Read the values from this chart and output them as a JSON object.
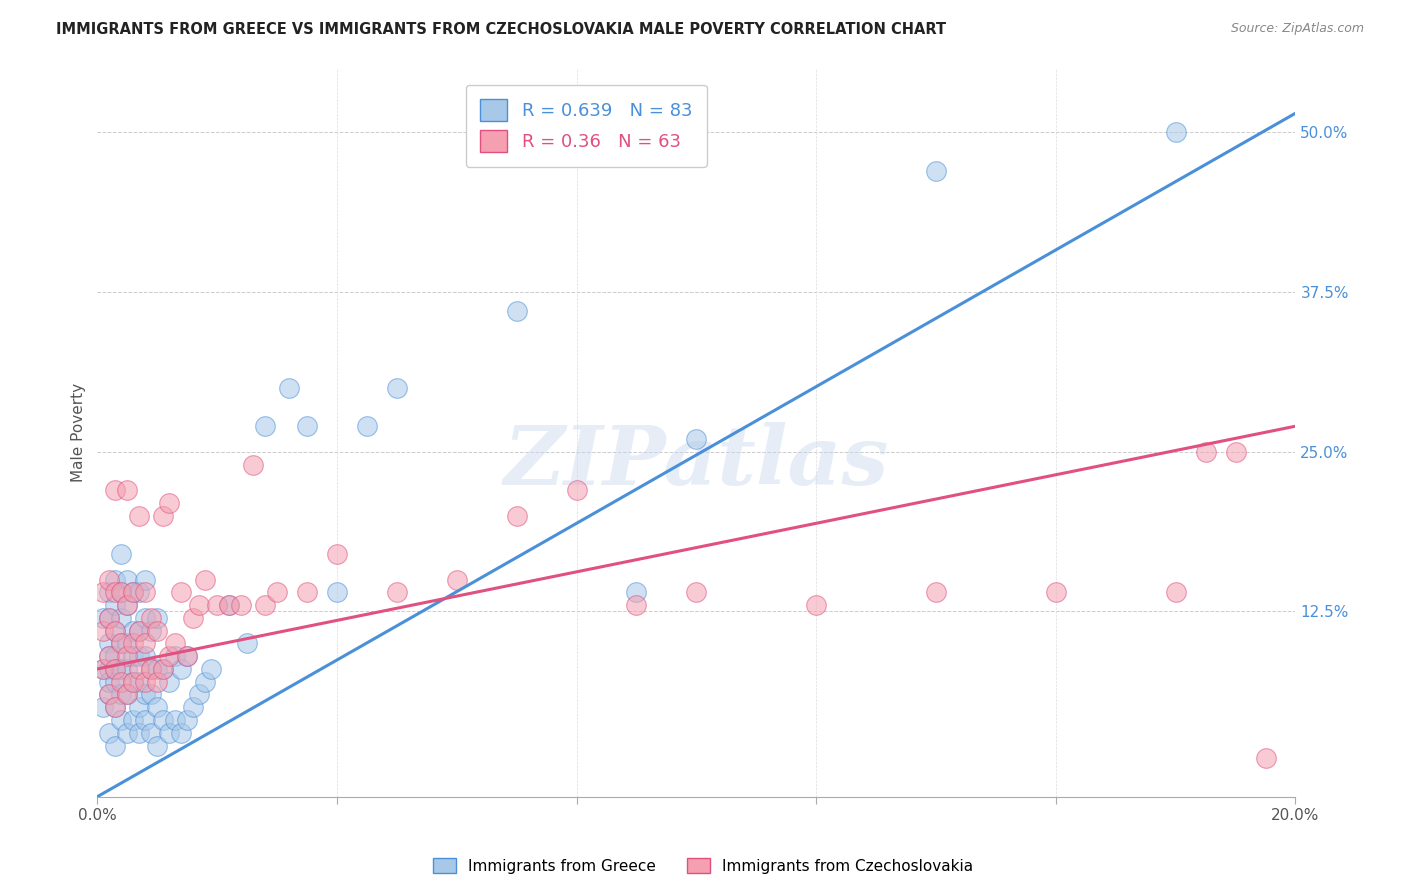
{
  "title": "IMMIGRANTS FROM GREECE VS IMMIGRANTS FROM CZECHOSLOVAKIA MALE POVERTY CORRELATION CHART",
  "source": "Source: ZipAtlas.com",
  "ylabel": "Male Poverty",
  "x_min": 0.0,
  "x_max": 0.2,
  "y_min": -0.02,
  "y_max": 0.55,
  "x_ticks": [
    0.0,
    0.04,
    0.08,
    0.12,
    0.16,
    0.2
  ],
  "x_tick_labels": [
    "0.0%",
    "",
    "",
    "",
    "",
    "20.0%"
  ],
  "y_ticks": [
    0.125,
    0.25,
    0.375,
    0.5
  ],
  "y_tick_labels": [
    "12.5%",
    "25.0%",
    "37.5%",
    "50.0%"
  ],
  "greece_color": "#a8c8e8",
  "czech_color": "#f4a0b0",
  "greece_line_color": "#4a90d9",
  "czech_line_color": "#e05080",
  "greece_R": 0.639,
  "greece_N": 83,
  "czech_R": 0.36,
  "czech_N": 63,
  "watermark": "ZIPatlas",
  "legend_label_greece": "Immigrants from Greece",
  "legend_label_czech": "Immigrants from Czechoslovakia",
  "greece_trend_x": [
    0.0,
    0.2
  ],
  "greece_trend_y": [
    -0.02,
    0.515
  ],
  "czech_trend_x": [
    0.0,
    0.2
  ],
  "czech_trend_y": [
    0.08,
    0.27
  ],
  "greece_scatter_x": [
    0.001,
    0.001,
    0.001,
    0.002,
    0.002,
    0.002,
    0.002,
    0.002,
    0.002,
    0.002,
    0.002,
    0.003,
    0.003,
    0.003,
    0.003,
    0.003,
    0.003,
    0.003,
    0.003,
    0.004,
    0.004,
    0.004,
    0.004,
    0.004,
    0.004,
    0.004,
    0.005,
    0.005,
    0.005,
    0.005,
    0.005,
    0.005,
    0.006,
    0.006,
    0.006,
    0.006,
    0.006,
    0.007,
    0.007,
    0.007,
    0.007,
    0.007,
    0.007,
    0.008,
    0.008,
    0.008,
    0.008,
    0.008,
    0.009,
    0.009,
    0.009,
    0.009,
    0.01,
    0.01,
    0.01,
    0.01,
    0.011,
    0.011,
    0.012,
    0.012,
    0.013,
    0.013,
    0.014,
    0.014,
    0.015,
    0.015,
    0.016,
    0.017,
    0.018,
    0.019,
    0.022,
    0.025,
    0.028,
    0.032,
    0.035,
    0.04,
    0.045,
    0.05,
    0.07,
    0.09,
    0.1,
    0.14,
    0.18
  ],
  "greece_scatter_y": [
    0.05,
    0.08,
    0.12,
    0.03,
    0.06,
    0.08,
    0.1,
    0.12,
    0.14,
    0.07,
    0.09,
    0.02,
    0.05,
    0.07,
    0.09,
    0.11,
    0.13,
    0.15,
    0.08,
    0.04,
    0.06,
    0.08,
    0.1,
    0.12,
    0.14,
    0.17,
    0.03,
    0.06,
    0.08,
    0.1,
    0.13,
    0.15,
    0.04,
    0.07,
    0.09,
    0.11,
    0.14,
    0.03,
    0.05,
    0.07,
    0.09,
    0.11,
    0.14,
    0.04,
    0.06,
    0.09,
    0.12,
    0.15,
    0.03,
    0.06,
    0.08,
    0.11,
    0.02,
    0.05,
    0.08,
    0.12,
    0.04,
    0.08,
    0.03,
    0.07,
    0.04,
    0.09,
    0.03,
    0.08,
    0.04,
    0.09,
    0.05,
    0.06,
    0.07,
    0.08,
    0.13,
    0.1,
    0.27,
    0.3,
    0.27,
    0.14,
    0.27,
    0.3,
    0.36,
    0.14,
    0.26,
    0.47,
    0.5
  ],
  "czech_scatter_x": [
    0.001,
    0.001,
    0.001,
    0.002,
    0.002,
    0.002,
    0.002,
    0.003,
    0.003,
    0.003,
    0.003,
    0.003,
    0.004,
    0.004,
    0.004,
    0.005,
    0.005,
    0.005,
    0.005,
    0.006,
    0.006,
    0.006,
    0.007,
    0.007,
    0.007,
    0.008,
    0.008,
    0.008,
    0.009,
    0.009,
    0.01,
    0.01,
    0.011,
    0.011,
    0.012,
    0.012,
    0.013,
    0.014,
    0.015,
    0.016,
    0.017,
    0.018,
    0.02,
    0.022,
    0.024,
    0.026,
    0.028,
    0.03,
    0.035,
    0.04,
    0.05,
    0.06,
    0.07,
    0.08,
    0.09,
    0.1,
    0.12,
    0.14,
    0.16,
    0.18,
    0.185,
    0.19,
    0.195
  ],
  "czech_scatter_y": [
    0.08,
    0.11,
    0.14,
    0.06,
    0.09,
    0.12,
    0.15,
    0.05,
    0.08,
    0.11,
    0.14,
    0.22,
    0.07,
    0.1,
    0.14,
    0.06,
    0.09,
    0.13,
    0.22,
    0.07,
    0.1,
    0.14,
    0.08,
    0.11,
    0.2,
    0.07,
    0.1,
    0.14,
    0.08,
    0.12,
    0.07,
    0.11,
    0.08,
    0.2,
    0.09,
    0.21,
    0.1,
    0.14,
    0.09,
    0.12,
    0.13,
    0.15,
    0.13,
    0.13,
    0.13,
    0.24,
    0.13,
    0.14,
    0.14,
    0.17,
    0.14,
    0.15,
    0.2,
    0.22,
    0.13,
    0.14,
    0.13,
    0.14,
    0.14,
    0.14,
    0.25,
    0.25,
    0.01
  ]
}
